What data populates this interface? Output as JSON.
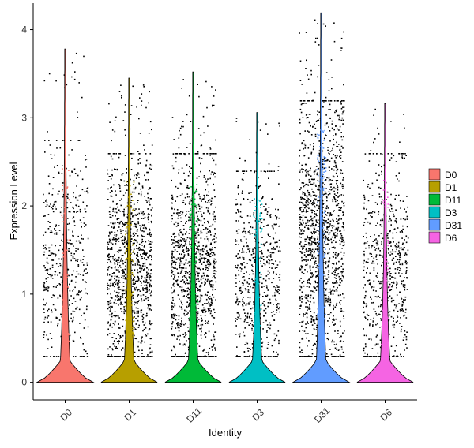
{
  "chart_data": {
    "type": "violin",
    "xlabel": "Identity",
    "ylabel": "Expression Level",
    "ylim": [
      -0.2,
      4.3
    ],
    "yticks": [
      0,
      1,
      2,
      3,
      4
    ],
    "grid": false,
    "legend_position": "right",
    "categories": [
      "D0",
      "D1",
      "D11",
      "D3",
      "D31",
      "D6"
    ],
    "series": [
      {
        "name": "D0",
        "color": "#F8766D",
        "max": 3.78,
        "spread_max": 2.45,
        "point_density": 0.35
      },
      {
        "name": "D1",
        "color": "#B79F00",
        "max": 3.45,
        "spread_max": 2.3,
        "point_density": 0.8
      },
      {
        "name": "D11",
        "color": "#00BA38",
        "max": 3.52,
        "spread_max": 2.3,
        "point_density": 0.8
      },
      {
        "name": "D3",
        "color": "#00BFC4",
        "max": 3.06,
        "spread_max": 2.1,
        "point_density": 0.45
      },
      {
        "name": "D31",
        "color": "#619CFF",
        "max": 4.19,
        "spread_max": 2.9,
        "point_density": 1.0
      },
      {
        "name": "D6",
        "color": "#F564E3",
        "max": 3.16,
        "spread_max": 2.3,
        "point_density": 0.45
      }
    ]
  }
}
